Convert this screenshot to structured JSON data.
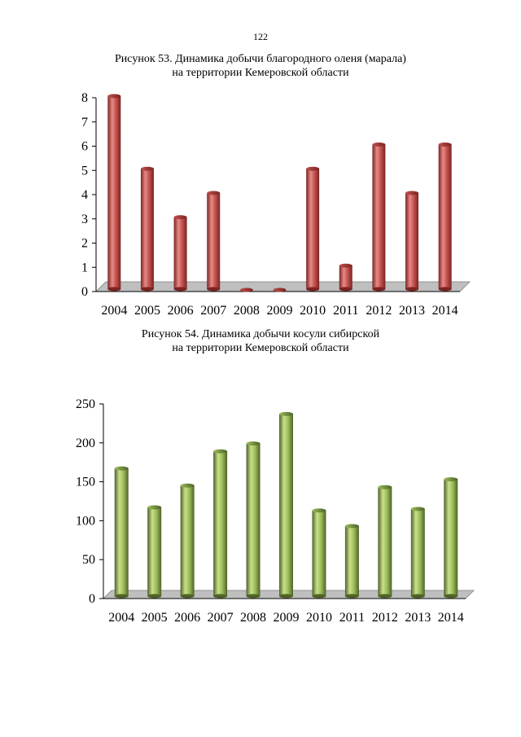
{
  "page_number": "122",
  "chart_data": [
    {
      "type": "bar",
      "title": "Рисунок 53. Динамика добычи благородного оленя (марала)",
      "subtitle": "на территории Кемеровской области",
      "categories": [
        "2004",
        "2005",
        "2006",
        "2007",
        "2008",
        "2009",
        "2010",
        "2011",
        "2012",
        "2013",
        "2014"
      ],
      "values": [
        8,
        5,
        3,
        4,
        0,
        0,
        5,
        1,
        6,
        4,
        6
      ],
      "yticks": [
        "0",
        "1",
        "2",
        "3",
        "4",
        "5",
        "6",
        "7",
        "8"
      ],
      "ylim": [
        0,
        8
      ],
      "xlabel": "",
      "ylabel": "",
      "bar_color": "#c0504d",
      "bar_color_dark": "#7a2422",
      "bar_color_light": "#e88a86",
      "grid": false,
      "legend": "none"
    },
    {
      "type": "bar",
      "title": "Рисунок 54. Динамика добычи косули сибирской",
      "subtitle": "на территории Кемеровской области",
      "categories": [
        "2004",
        "2005",
        "2006",
        "2007",
        "2008",
        "2009",
        "2010",
        "2011",
        "2012",
        "2013",
        "2014"
      ],
      "values": [
        165,
        115,
        143,
        187,
        197,
        235,
        111,
        91,
        141,
        113,
        151
      ],
      "yticks": [
        "0",
        "50",
        "100",
        "150",
        "200",
        "250"
      ],
      "ylim": [
        0,
        250
      ],
      "xlabel": "",
      "ylabel": "",
      "bar_color": "#9bbb59",
      "bar_color_dark": "#4f6228",
      "bar_color_light": "#c9e08a",
      "grid": false,
      "legend": "none"
    }
  ]
}
